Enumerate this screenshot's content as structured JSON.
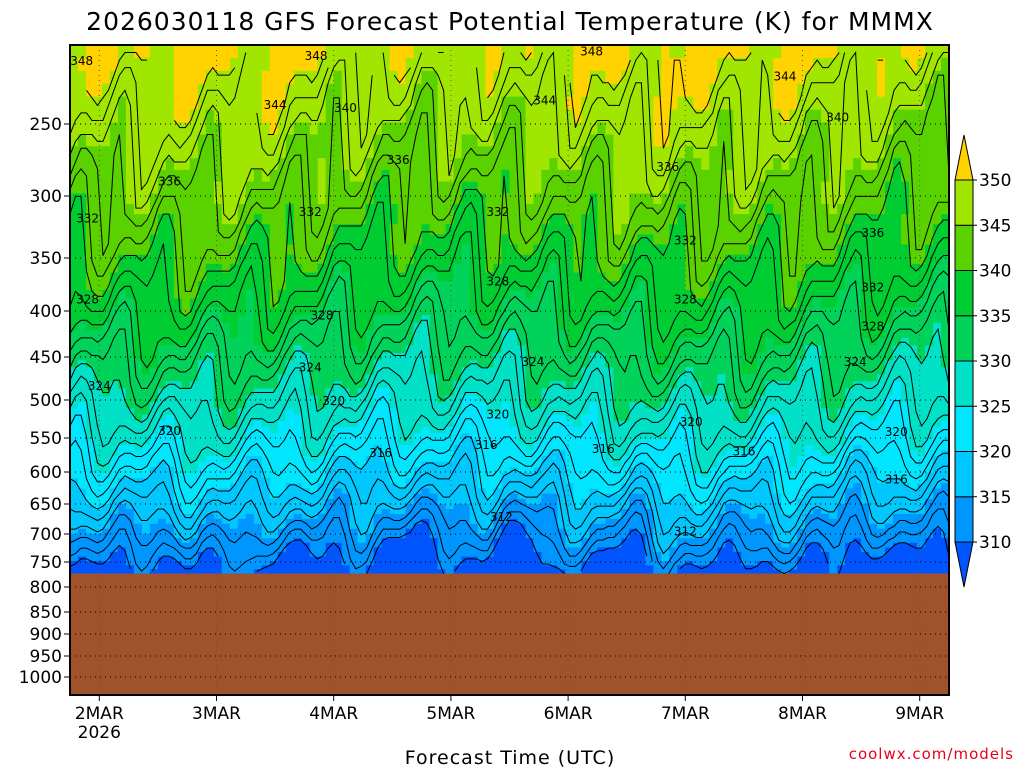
{
  "chart_data": {
    "type": "heatmap",
    "title": "2026030118 GFS Forecast Potential Temperature (K) for MMMX",
    "xlabel": "Forecast Time (UTC)",
    "ylabel": "",
    "x_ticks": [
      {
        "label": "2MAR",
        "sub": "2026",
        "day": 0.0
      },
      {
        "label": "3MAR",
        "sub": "",
        "day": 1.0
      },
      {
        "label": "4MAR",
        "sub": "",
        "day": 2.0
      },
      {
        "label": "5MAR",
        "sub": "",
        "day": 3.0
      },
      {
        "label": "6MAR",
        "sub": "",
        "day": 4.0
      },
      {
        "label": "7MAR",
        "sub": "",
        "day": 5.0
      },
      {
        "label": "8MAR",
        "sub": "",
        "day": 6.0
      },
      {
        "label": "9MAR",
        "sub": "",
        "day": 7.0
      }
    ],
    "xlim": [
      -0.25,
      7.25
    ],
    "y_ticks": [
      250,
      300,
      350,
      400,
      450,
      500,
      550,
      600,
      650,
      700,
      750,
      800,
      850,
      900,
      950,
      1000
    ],
    "ylim": [
      200,
      1030
    ],
    "surface_pressure": 773,
    "colorbar": {
      "ticks": [
        "310",
        "315",
        "320",
        "325",
        "330",
        "335",
        "340",
        "345",
        "350"
      ],
      "levels": [
        310,
        315,
        320,
        325,
        330,
        335,
        340,
        345,
        350
      ],
      "colors": [
        "#0055ff",
        "#0096ff",
        "#00c8ff",
        "#00e6ff",
        "#00e1c8",
        "#00d25a",
        "#00cd32",
        "#5ad200",
        "#a0e600",
        "#f0f000",
        "#ffd200"
      ],
      "extend": "both"
    },
    "ground_color": "#a0522d",
    "contour_labels": [
      {
        "text": "348",
        "day": -0.15,
        "p": 210
      },
      {
        "text": "348",
        "day": 1.85,
        "p": 207
      },
      {
        "text": "348",
        "day": 4.2,
        "p": 204
      },
      {
        "text": "344",
        "day": 5.85,
        "p": 220
      },
      {
        "text": "344",
        "day": 3.8,
        "p": 235
      },
      {
        "text": "344",
        "day": 1.5,
        "p": 238
      },
      {
        "text": "340",
        "day": 2.1,
        "p": 240
      },
      {
        "text": "340",
        "day": 6.3,
        "p": 246
      },
      {
        "text": "336",
        "day": 2.55,
        "p": 275
      },
      {
        "text": "336",
        "day": 4.85,
        "p": 280
      },
      {
        "text": "336",
        "day": 0.6,
        "p": 290
      },
      {
        "text": "336",
        "day": 6.6,
        "p": 330
      },
      {
        "text": "332",
        "day": -0.1,
        "p": 318
      },
      {
        "text": "332",
        "day": 1.8,
        "p": 313
      },
      {
        "text": "332",
        "day": 3.4,
        "p": 313
      },
      {
        "text": "332",
        "day": 5.0,
        "p": 336
      },
      {
        "text": "328",
        "day": -0.1,
        "p": 389
      },
      {
        "text": "328",
        "day": 1.9,
        "p": 405
      },
      {
        "text": "328",
        "day": 3.4,
        "p": 372
      },
      {
        "text": "328",
        "day": 5.0,
        "p": 389
      },
      {
        "text": "332",
        "day": 6.6,
        "p": 378
      },
      {
        "text": "328",
        "day": 6.6,
        "p": 417
      },
      {
        "text": "324",
        "day": 0.0,
        "p": 484
      },
      {
        "text": "324",
        "day": 1.8,
        "p": 462
      },
      {
        "text": "324",
        "day": 3.7,
        "p": 456
      },
      {
        "text": "324",
        "day": 6.45,
        "p": 456
      },
      {
        "text": "320",
        "day": 2.0,
        "p": 501
      },
      {
        "text": "320",
        "day": 3.4,
        "p": 519
      },
      {
        "text": "320",
        "day": 0.6,
        "p": 541
      },
      {
        "text": "320",
        "day": 5.05,
        "p": 529
      },
      {
        "text": "320",
        "day": 6.8,
        "p": 542
      },
      {
        "text": "316",
        "day": 2.4,
        "p": 572
      },
      {
        "text": "316",
        "day": 3.3,
        "p": 560
      },
      {
        "text": "316",
        "day": 4.3,
        "p": 566
      },
      {
        "text": "316",
        "day": 5.5,
        "p": 570
      },
      {
        "text": "316",
        "day": 6.8,
        "p": 612
      },
      {
        "text": "312",
        "day": 3.43,
        "p": 672
      },
      {
        "text": "312",
        "day": 5.0,
        "p": 696
      }
    ],
    "credit": "coolwx.com/models"
  }
}
